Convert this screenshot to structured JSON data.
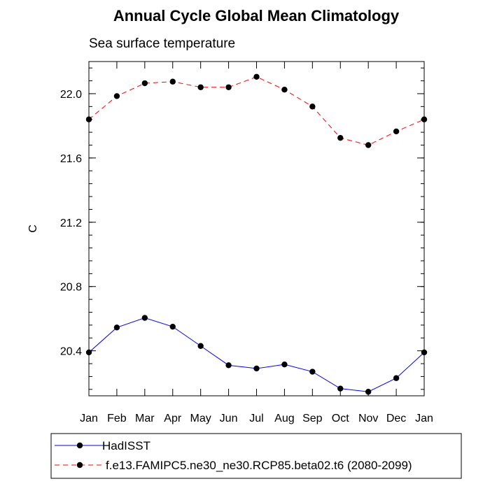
{
  "chart_data": {
    "type": "line",
    "title": "Annual Cycle Global Mean Climatology",
    "subtitle": "Sea surface temperature",
    "xlabel": "",
    "ylabel": "C",
    "categories": [
      "Jan",
      "Feb",
      "Mar",
      "Apr",
      "May",
      "Jun",
      "Jul",
      "Aug",
      "Sep",
      "Oct",
      "Nov",
      "Dec",
      "Jan"
    ],
    "ylim": [
      20.12,
      22.2
    ],
    "yticks": [
      20.4,
      20.8,
      21.2,
      21.6,
      22.0
    ],
    "ytick_labels": [
      "20.4",
      "20.8",
      "21.2",
      "21.6",
      "22.0"
    ],
    "minor_ytick_step": 0.08,
    "grid": false,
    "legend_position": "bottom",
    "series": [
      {
        "name": "HadISST",
        "color": "#0000ff",
        "line_style": "solid",
        "marker": "filled-circle",
        "values": [
          20.39,
          20.545,
          20.605,
          20.55,
          20.43,
          20.31,
          20.29,
          20.315,
          20.27,
          20.165,
          20.145,
          20.23,
          20.39
        ]
      },
      {
        "name": "f.e13.FAMIPC5.ne30_ne30.RCP85.beta02.t6 (2080-2099)",
        "color": "#ff0000",
        "line_style": "dashed",
        "marker": "filled-circle",
        "values": [
          21.84,
          21.985,
          22.065,
          22.075,
          22.04,
          22.04,
          22.105,
          22.025,
          21.92,
          21.725,
          21.68,
          21.765,
          21.84
        ]
      }
    ]
  }
}
